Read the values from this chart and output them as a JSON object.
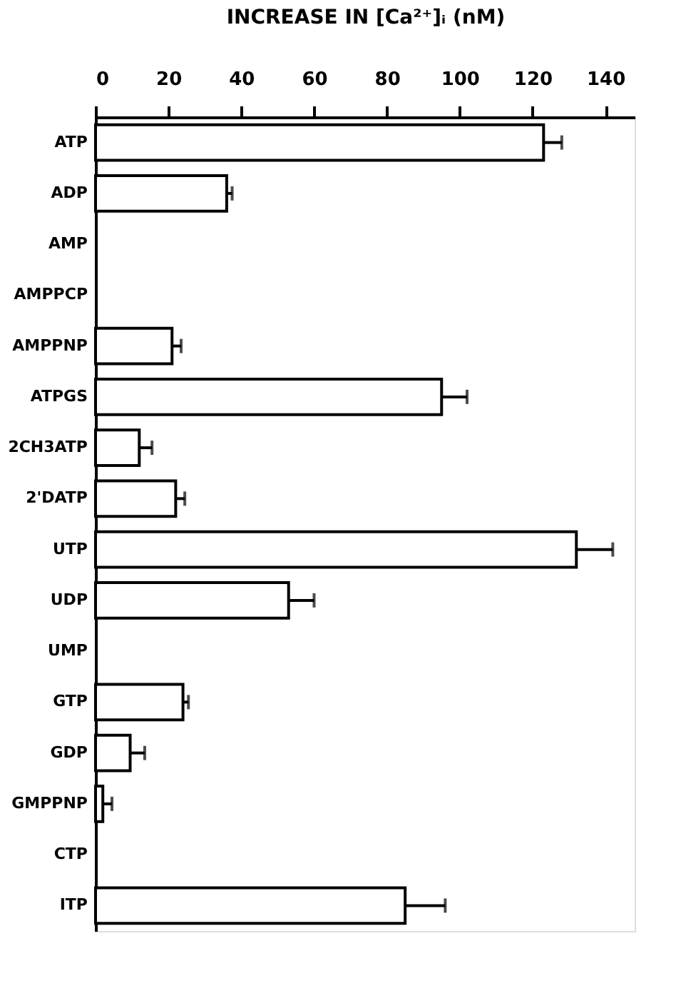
{
  "chart_data": {
    "type": "bar",
    "orientation": "horizontal",
    "xlabel": "INCREASE IN [Ca²⁺]ᵢ (nM)",
    "categories": [
      "ATP",
      "ADP",
      "AMP",
      "AMPPCP",
      "AMPPNP",
      "ATPGS",
      "2CH3ATP",
      "2'DATP",
      "UTP",
      "UDP",
      "UMP",
      "GTP",
      "GDP",
      "GMPPNP",
      "CTP",
      "ITP"
    ],
    "values": [
      123,
      36,
      null,
      null,
      21,
      95,
      12,
      22,
      132,
      53,
      null,
      24,
      9.5,
      2,
      null,
      85
    ],
    "errors": [
      [
        123,
        128
      ],
      [
        36,
        37.5
      ],
      null,
      null,
      [
        21,
        23.5
      ],
      [
        95,
        102
      ],
      [
        12,
        15.5
      ],
      [
        22,
        24.5
      ],
      [
        132,
        142
      ],
      [
        53,
        60
      ],
      null,
      [
        24,
        25.5
      ],
      [
        9.5,
        13.5
      ],
      [
        2,
        4.5
      ],
      null,
      [
        85,
        96
      ]
    ],
    "color": "#ffffff",
    "xlim": [
      0,
      148
    ],
    "xticks": [
      0,
      20,
      40,
      60,
      80,
      100,
      120,
      140
    ],
    "grid": false
  }
}
